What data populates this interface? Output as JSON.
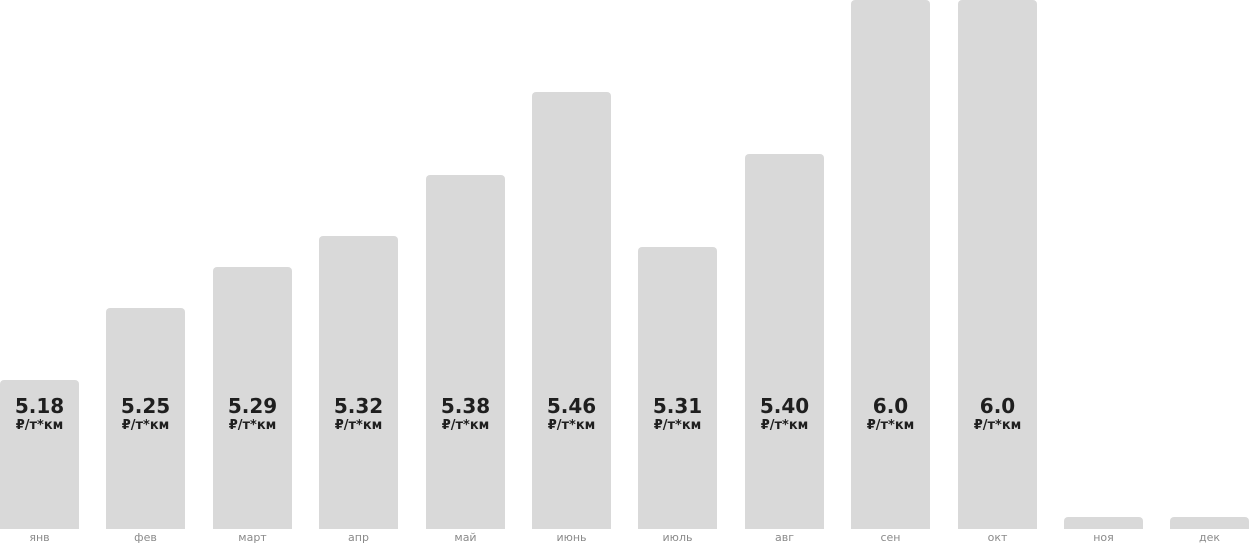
{
  "chart_data": {
    "type": "bar",
    "categories": [
      "янв",
      "фев",
      "март",
      "апр",
      "май",
      "июнь",
      "июль",
      "авг",
      "сен",
      "окт",
      "ноя",
      "дек"
    ],
    "values": [
      5.18,
      5.25,
      5.29,
      5.32,
      5.38,
      5.46,
      5.31,
      5.4,
      6.0,
      6.0,
      null,
      null
    ],
    "value_labels": [
      "5.18",
      "5.25",
      "5.29",
      "5.32",
      "5.38",
      "5.46",
      "5.31",
      "5.40",
      "6.0",
      "6.0",
      "",
      ""
    ],
    "unit_label": "₽/т*км",
    "title": "",
    "xlabel": "",
    "ylabel": "",
    "ylim": [
      5.035,
      5.55
    ],
    "grid": false,
    "legend": "none",
    "bar_color": "#d9d9d9",
    "text_color": "#1f1f1f",
    "category_color": "#8a8a8a"
  }
}
